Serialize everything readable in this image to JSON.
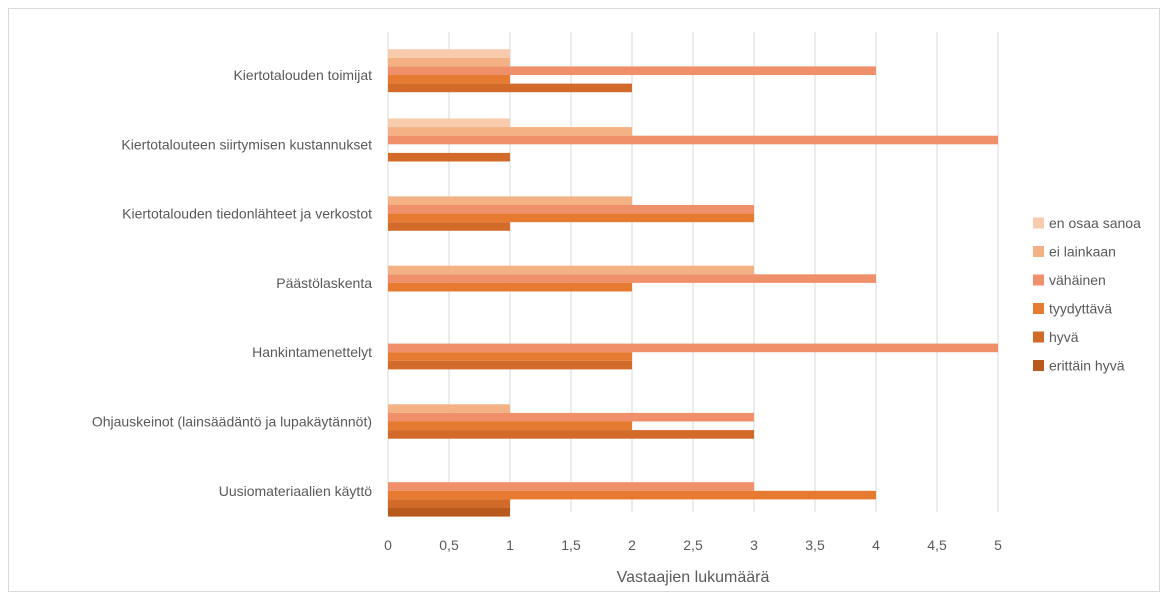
{
  "chart_data": {
    "type": "bar",
    "orientation": "horizontal",
    "categories": [
      "Kiertotalouden toimijat",
      "Kiertotalouteen siirtymisen kustannukset",
      "Kiertotalouden tiedonlähteet ja verkostot",
      "Päästölaskenta",
      "Hankintamenettelyt",
      "Ohjauskeinot (lainsäädäntö ja lupakäytännöt)",
      "Uusiomateriaalien käyttö"
    ],
    "series": [
      {
        "name": "en osaa sanoa",
        "color": "#f8cbad",
        "values": [
          1,
          1,
          0,
          0,
          0,
          0,
          0
        ]
      },
      {
        "name": "ei lainkaan",
        "color": "#f4b183",
        "values": [
          1,
          2,
          2,
          3,
          0,
          1,
          0
        ]
      },
      {
        "name": "vähäinen",
        "color": "#f0906b",
        "values": [
          4,
          5,
          3,
          4,
          5,
          3,
          3
        ]
      },
      {
        "name": "tyydyttävä",
        "color": "#e67a30",
        "values": [
          1,
          0,
          3,
          2,
          2,
          2,
          4
        ]
      },
      {
        "name": "hyvä",
        "color": "#d26a2a",
        "values": [
          2,
          1,
          1,
          0,
          2,
          3,
          1
        ]
      },
      {
        "name": "erittäin hyvä",
        "color": "#b85a1e",
        "values": [
          0,
          0,
          0,
          0,
          0,
          0,
          1
        ]
      }
    ],
    "xlabel": "Vastaajien lukumäärä",
    "xlim": [
      0,
      5
    ],
    "xticks": [
      "0",
      "0,5",
      "1",
      "1,5",
      "2",
      "2,5",
      "3",
      "3,5",
      "4",
      "4,5",
      "5"
    ],
    "grid": "vertical",
    "legend": "right"
  }
}
